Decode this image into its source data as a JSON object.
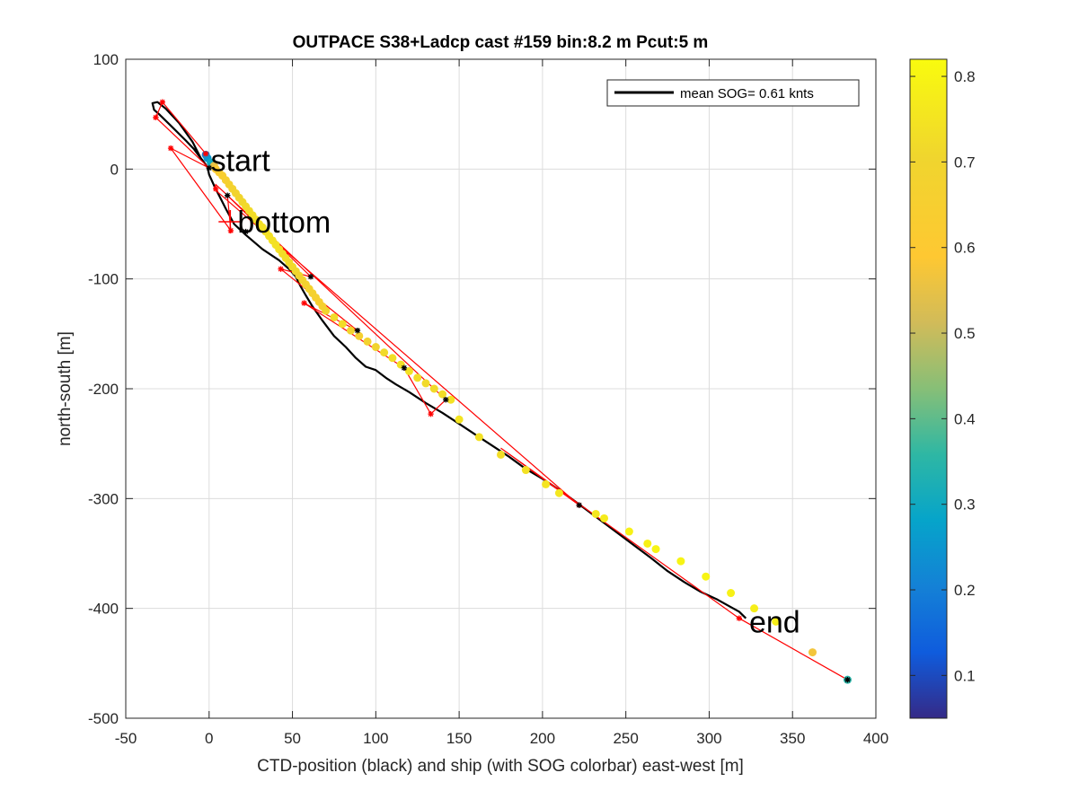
{
  "chart_data": {
    "type": "scatter",
    "title": "OUTPACE S38+Ladcp cast #159 bin:8.2 m  Pcut:5 m",
    "xlabel": "CTD-position (black) and ship (with SOG colorbar) east-west [m]",
    "ylabel": "north-south [m]",
    "xlim": [
      -50,
      400
    ],
    "ylim": [
      -500,
      100
    ],
    "xticks": [
      "-50",
      "0",
      "50",
      "100",
      "150",
      "200",
      "250",
      "300",
      "350",
      "400"
    ],
    "yticks": [
      "100",
      "0",
      "-100",
      "-200",
      "-300",
      "-400",
      "-500"
    ],
    "grid": true,
    "legend": {
      "label": "mean SOG=  0.61 knts",
      "location": "top-right"
    },
    "colorbar": {
      "clim": [
        0.05,
        0.82
      ],
      "ticks": [
        "0.1",
        "0.2",
        "0.3",
        "0.4",
        "0.5",
        "0.6",
        "0.7",
        "0.8"
      ],
      "colormap": "parula"
    },
    "annotations": [
      {
        "text": "start",
        "x": 1,
        "y": 8
      },
      {
        "text": "bottom",
        "x": 17,
        "y": -48,
        "marker": "+",
        "color": "#ff0000"
      },
      {
        "text": "end",
        "x": 324,
        "y": -412
      }
    ],
    "series": [
      {
        "type": "line",
        "color": "#000000",
        "x": [
          0,
          -5,
          -10,
          -18,
          -26,
          -31,
          -34,
          -33,
          -30,
          -22,
          -14,
          -9,
          -6,
          -3,
          -1,
          0,
          3,
          6,
          10,
          15,
          22,
          32,
          42,
          48,
          52,
          55,
          58,
          62,
          68,
          75,
          82,
          88,
          94,
          100,
          106,
          112,
          120,
          130,
          140,
          150,
          160,
          170,
          180,
          190,
          200,
          210,
          220,
          235,
          250,
          265,
          275,
          285,
          295,
          305,
          312,
          318,
          322
        ],
        "y": [
          0,
          10,
          25,
          42,
          55,
          61,
          60,
          54,
          50,
          38,
          26,
          18,
          12,
          6,
          2,
          -5,
          -15,
          -24,
          -36,
          -50,
          -60,
          -73,
          -83,
          -91,
          -98,
          -107,
          -115,
          -125,
          -138,
          -152,
          -162,
          -172,
          -180,
          -183,
          -190,
          -196,
          -203,
          -213,
          -222,
          -232,
          -242,
          -252,
          -262,
          -273,
          -282,
          -292,
          -303,
          -320,
          -337,
          -354,
          -366,
          -376,
          -385,
          -392,
          -398,
          -403,
          -409
        ]
      },
      {
        "type": "line",
        "color": "#ff0000",
        "x": [
          -2,
          -28,
          -32,
          0,
          -23,
          13,
          11,
          61,
          43,
          89,
          57,
          117,
          133,
          142,
          4,
          3,
          222,
          175,
          318,
          383
        ],
        "y": [
          14,
          61,
          47,
          1,
          19,
          -56,
          -24,
          -98,
          -91,
          -147,
          -122,
          -181,
          -223,
          -210,
          -14,
          -18,
          -306,
          -254,
          -409,
          -465
        ]
      },
      {
        "type": "scatter",
        "marker": "*",
        "color": "#ff0000",
        "x": [
          -2,
          -28,
          -32,
          -23,
          13,
          43,
          57,
          133,
          222,
          318,
          4
        ],
        "y": [
          14,
          61,
          47,
          19,
          -56,
          -91,
          -122,
          -223,
          -306,
          -409,
          -18
        ]
      },
      {
        "type": "scatter",
        "marker": "*",
        "color": "#000000",
        "x": [
          0,
          11,
          22,
          61,
          89,
          117,
          142,
          222,
          383
        ],
        "y": [
          1,
          -24,
          -57,
          -98,
          -147,
          -181,
          -210,
          -306,
          -465
        ]
      },
      {
        "type": "scatter",
        "marker": "o",
        "colored_by": "SOG",
        "x": [
          -2,
          -1,
          1,
          3,
          4,
          6,
          8,
          10,
          12,
          14,
          16,
          18,
          20,
          22,
          24,
          26,
          28,
          30,
          32,
          34,
          36,
          38,
          40,
          42,
          44,
          46,
          48,
          50,
          52,
          54,
          56,
          58,
          60,
          62,
          64,
          66,
          68,
          70,
          75,
          80,
          85,
          90,
          95,
          100,
          105,
          110,
          115,
          120,
          125,
          130,
          135,
          140,
          145,
          150,
          162,
          175,
          190,
          202,
          210,
          232,
          237,
          252,
          263,
          268,
          283,
          298,
          313,
          327,
          340,
          362,
          383
        ],
        "y": [
          13,
          10,
          6,
          3,
          0,
          -3,
          -6,
          -10,
          -14,
          -18,
          -22,
          -26,
          -30,
          -34,
          -38,
          -42,
          -46,
          -50,
          -53,
          -57,
          -61,
          -65,
          -69,
          -73,
          -77,
          -81,
          -85,
          -89,
          -93,
          -97,
          -101,
          -105,
          -109,
          -113,
          -117,
          -121,
          -125,
          -129,
          -135,
          -141,
          -147,
          -152,
          -157,
          -162,
          -167,
          -172,
          -178,
          -184,
          -190,
          -195,
          -200,
          -205,
          -210,
          -228,
          -244,
          -260,
          -274,
          -287,
          -295,
          -314,
          -318,
          -330,
          -341,
          -346,
          -357,
          -371,
          -386,
          -400,
          -412,
          -440,
          -465
        ],
        "values": [
          0.2,
          0.25,
          0.3,
          0.55,
          0.6,
          0.62,
          0.64,
          0.65,
          0.67,
          0.68,
          0.69,
          0.7,
          0.71,
          0.72,
          0.72,
          0.73,
          0.73,
          0.73,
          0.74,
          0.74,
          0.74,
          0.74,
          0.74,
          0.74,
          0.73,
          0.73,
          0.72,
          0.72,
          0.71,
          0.7,
          0.69,
          0.68,
          0.68,
          0.67,
          0.66,
          0.65,
          0.66,
          0.7,
          0.72,
          0.73,
          0.7,
          0.66,
          0.68,
          0.7,
          0.72,
          0.73,
          0.74,
          0.74,
          0.73,
          0.72,
          0.72,
          0.73,
          0.74,
          0.75,
          0.74,
          0.73,
          0.74,
          0.75,
          0.76,
          0.76,
          0.77,
          0.79,
          0.79,
          0.8,
          0.8,
          0.8,
          0.79,
          0.78,
          0.78,
          0.57,
          0.35
        ]
      }
    ]
  }
}
